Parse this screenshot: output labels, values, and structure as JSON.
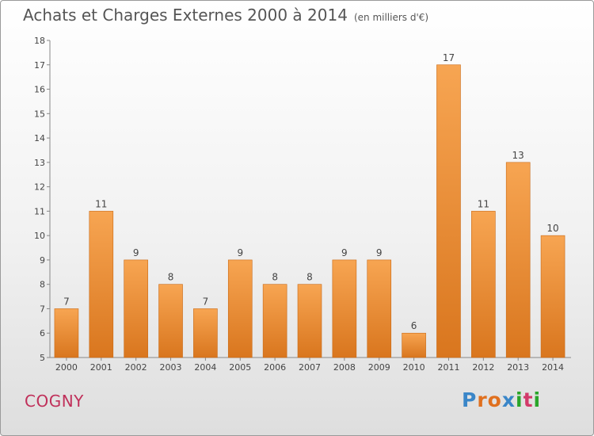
{
  "header": {
    "title": "Achats et Charges Externes 2000 à 2014",
    "subtitle": "(en milliers d'€)"
  },
  "footer": {
    "city": "COGNY",
    "logo_letters": [
      "P",
      "r",
      "o",
      "x",
      "i",
      "t",
      "i"
    ],
    "logo_colors": [
      "#3a86c8",
      "#e0701f",
      "#e0701f",
      "#3a86c8",
      "#2aa52a",
      "#d23a6a",
      "#2aa52a"
    ]
  },
  "chart_data": {
    "type": "bar",
    "categories": [
      "2000",
      "2001",
      "2002",
      "2003",
      "2004",
      "2005",
      "2006",
      "2007",
      "2008",
      "2009",
      "2010",
      "2011",
      "2012",
      "2013",
      "2014"
    ],
    "values": [
      7,
      11,
      9,
      8,
      7,
      9,
      8,
      8,
      9,
      9,
      6,
      17,
      11,
      13,
      10
    ],
    "title": "Achats et Charges Externes 2000 à 2014",
    "ylim": [
      5,
      18
    ],
    "yticks": [
      5,
      6,
      7,
      8,
      9,
      10,
      11,
      12,
      13,
      14,
      15,
      16,
      17,
      18
    ],
    "grid": false,
    "bar_color_top": "#f7a552",
    "bar_color_bottom": "#d9761e"
  }
}
